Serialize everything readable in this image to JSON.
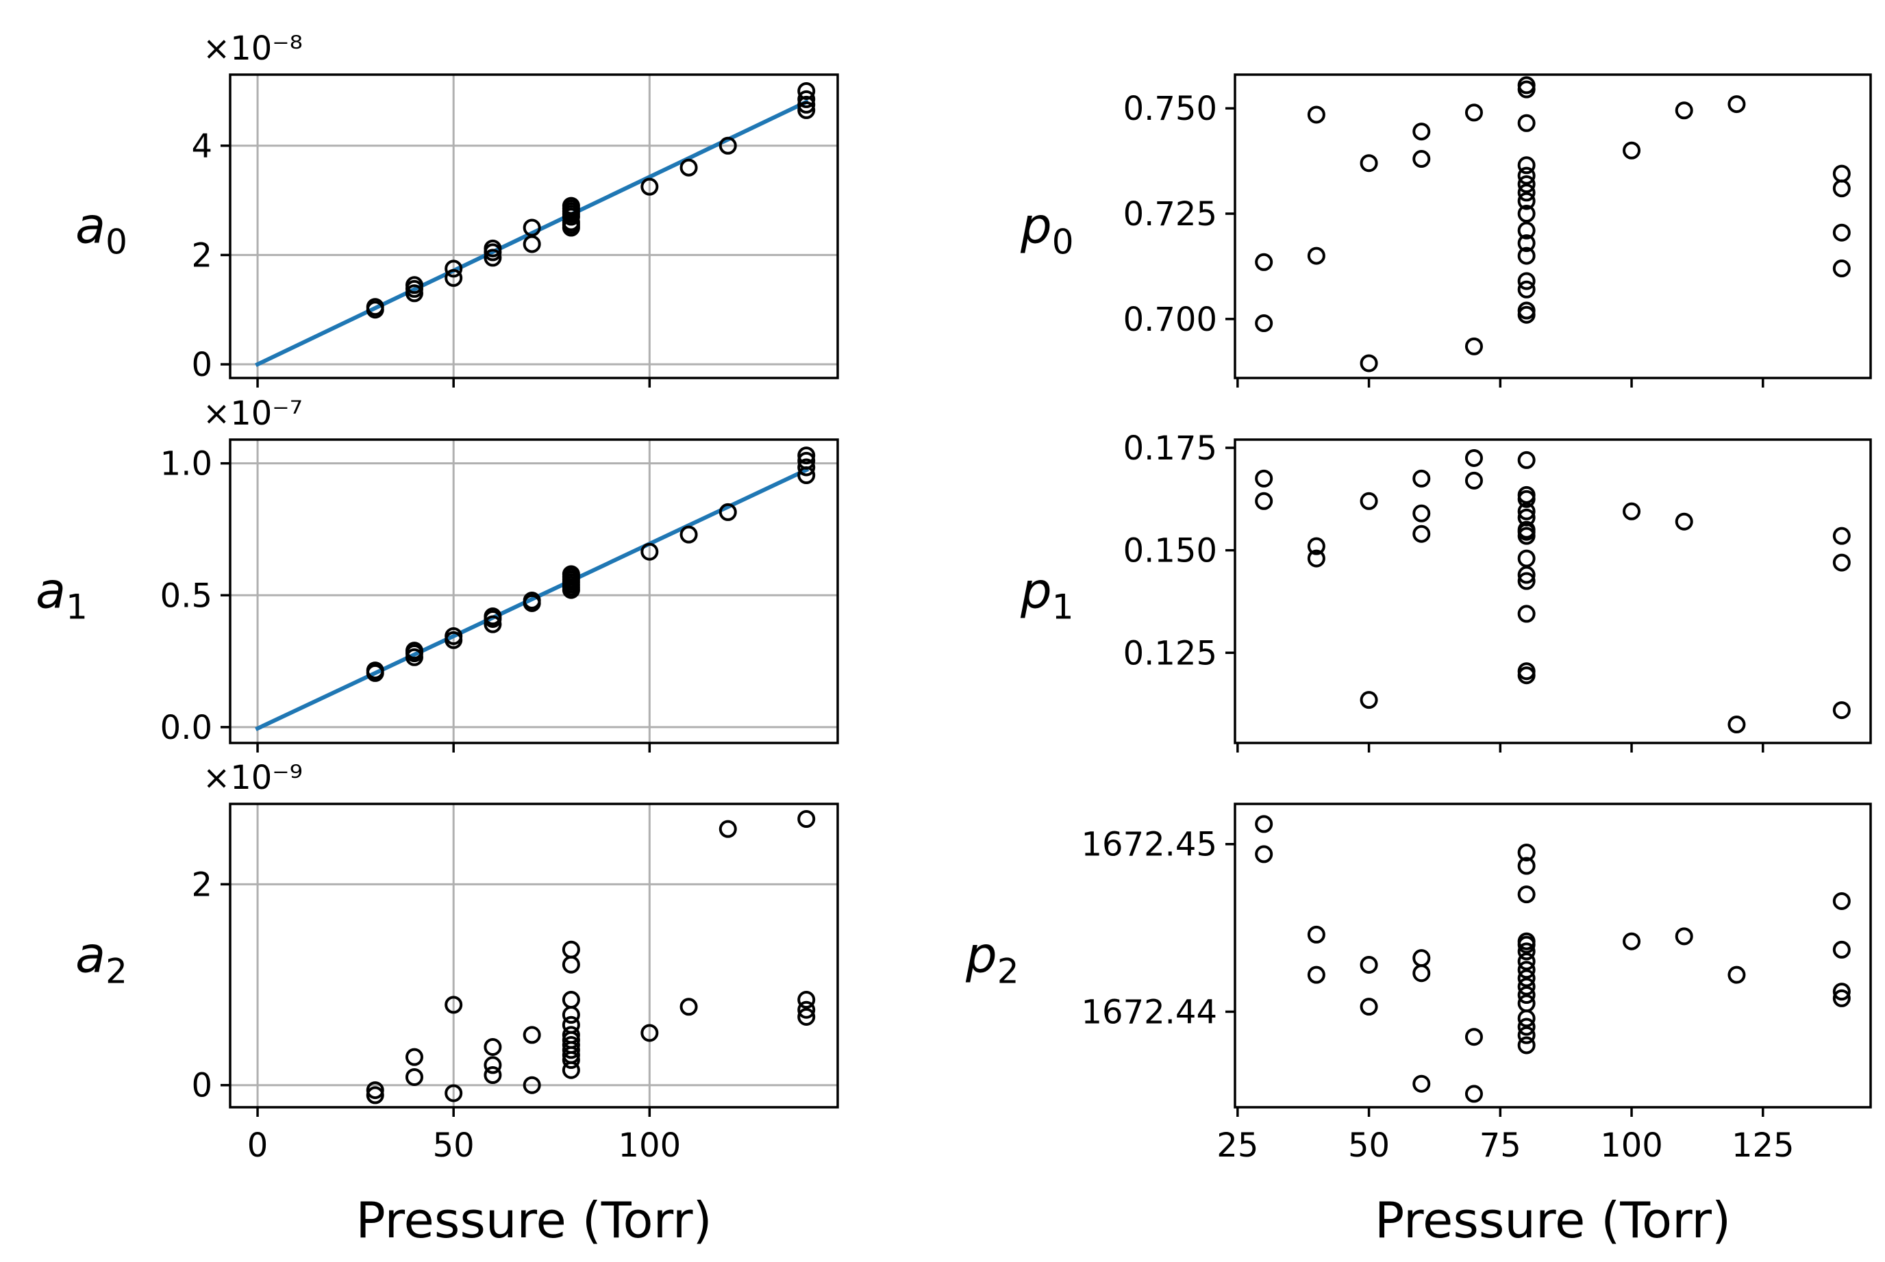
{
  "chart_data": [
    {
      "id": "a0",
      "type": "scatter",
      "ylabel": "a",
      "ylabel_sub": "0",
      "offset_text": "×10⁻⁸",
      "xlabel": "",
      "grid": true,
      "xlim": [
        -7,
        148
      ],
      "ylim": [
        -0.25,
        5.3
      ],
      "xticks": [
        0,
        50,
        100
      ],
      "xtick_labels": [
        "",
        "",
        ""
      ],
      "yticks": [
        0,
        2,
        4
      ],
      "ytick_labels": [
        "0",
        "2",
        "4"
      ],
      "fit_line": {
        "x": [
          0,
          140
        ],
        "y": [
          0,
          4.8
        ],
        "color": "#1f77b4"
      },
      "x": [
        30,
        30,
        40,
        40,
        40,
        50,
        50,
        60,
        60,
        60,
        70,
        70,
        80,
        80,
        80,
        80,
        80,
        80,
        80,
        80,
        100,
        110,
        120,
        140,
        140,
        140,
        140
      ],
      "y": [
        1.0,
        1.05,
        1.3,
        1.38,
        1.45,
        1.58,
        1.75,
        1.95,
        2.05,
        2.12,
        2.2,
        2.5,
        2.55,
        2.6,
        2.7,
        2.75,
        2.8,
        2.85,
        2.9,
        2.5,
        3.25,
        3.6,
        4.0,
        4.65,
        4.75,
        4.85,
        5.0
      ]
    },
    {
      "id": "a1",
      "type": "scatter",
      "ylabel": "a",
      "ylabel_sub": "1",
      "offset_text": "×10⁻⁷",
      "xlabel": "",
      "grid": true,
      "xlim": [
        -7,
        148
      ],
      "ylim": [
        -0.06,
        1.09
      ],
      "xticks": [
        0,
        50,
        100
      ],
      "xtick_labels": [
        "",
        "",
        ""
      ],
      "yticks": [
        0.0,
        0.5,
        1.0
      ],
      "ytick_labels": [
        "0.0",
        "0.5",
        "1.0"
      ],
      "fit_line": {
        "x": [
          0,
          140
        ],
        "y": [
          -0.005,
          0.975
        ],
        "color": "#1f77b4"
      },
      "x": [
        30,
        30,
        40,
        40,
        40,
        50,
        50,
        60,
        60,
        60,
        70,
        70,
        80,
        80,
        80,
        80,
        80,
        80,
        80,
        100,
        110,
        120,
        140,
        140,
        140,
        140
      ],
      "y": [
        0.205,
        0.215,
        0.265,
        0.28,
        0.29,
        0.33,
        0.345,
        0.39,
        0.41,
        0.42,
        0.47,
        0.48,
        0.52,
        0.53,
        0.54,
        0.55,
        0.56,
        0.57,
        0.58,
        0.665,
        0.73,
        0.815,
        0.955,
        0.985,
        1.01,
        1.03
      ]
    },
    {
      "id": "a2",
      "type": "scatter",
      "ylabel": "a",
      "ylabel_sub": "2",
      "offset_text": "×10⁻⁹",
      "xlabel": "Pressure (Torr)",
      "grid": true,
      "xlim": [
        -7,
        148
      ],
      "ylim": [
        -0.22,
        2.8
      ],
      "xticks": [
        0,
        50,
        100
      ],
      "xtick_labels": [
        "0",
        "50",
        "100"
      ],
      "yticks": [
        0,
        2
      ],
      "ytick_labels": [
        "0",
        "2"
      ],
      "fit_line": null,
      "x": [
        30,
        30,
        40,
        40,
        50,
        50,
        60,
        60,
        60,
        70,
        70,
        80,
        80,
        80,
        80,
        80,
        80,
        80,
        80,
        80,
        80,
        80,
        80,
        100,
        110,
        120,
        140,
        140,
        140,
        140
      ],
      "y": [
        -0.05,
        -0.1,
        0.08,
        0.28,
        0.8,
        -0.08,
        0.1,
        0.2,
        0.38,
        0.5,
        0.0,
        0.15,
        0.25,
        0.3,
        0.35,
        0.4,
        0.45,
        0.5,
        0.6,
        0.7,
        0.85,
        1.2,
        1.35,
        0.52,
        0.78,
        2.55,
        2.65,
        0.85,
        0.75,
        0.68
      ]
    },
    {
      "id": "p0",
      "type": "scatter",
      "ylabel": "p",
      "ylabel_sub": "0",
      "offset_text": "",
      "xlabel": "",
      "grid": false,
      "xlim": [
        24.5,
        145.5
      ],
      "ylim": [
        0.686,
        0.758
      ],
      "xticks": [
        25,
        50,
        75,
        100,
        125
      ],
      "xtick_labels": [
        "",
        "",
        "",
        "",
        ""
      ],
      "yticks": [
        0.7,
        0.725,
        0.75
      ],
      "ytick_labels": [
        "0.700",
        "0.725",
        "0.750"
      ],
      "fit_line": null,
      "x": [
        30,
        30,
        40,
        40,
        50,
        50,
        60,
        60,
        70,
        70,
        80,
        80,
        80,
        80,
        80,
        80,
        80,
        80,
        80,
        80,
        80,
        80,
        80,
        80,
        80,
        80,
        100,
        110,
        120,
        140,
        140,
        140,
        140
      ],
      "y": [
        0.699,
        0.7135,
        0.715,
        0.7485,
        0.6895,
        0.737,
        0.738,
        0.7445,
        0.6935,
        0.749,
        0.701,
        0.702,
        0.707,
        0.709,
        0.715,
        0.718,
        0.721,
        0.725,
        0.728,
        0.73,
        0.732,
        0.734,
        0.7365,
        0.7465,
        0.7545,
        0.7555,
        0.74,
        0.7495,
        0.751,
        0.712,
        0.7205,
        0.731,
        0.7345
      ]
    },
    {
      "id": "p1",
      "type": "scatter",
      "ylabel": "p",
      "ylabel_sub": "1",
      "offset_text": "",
      "xlabel": "",
      "grid": false,
      "xlim": [
        24.5,
        145.5
      ],
      "ylim": [
        0.103,
        0.177
      ],
      "xticks": [
        25,
        50,
        75,
        100,
        125
      ],
      "xtick_labels": [
        "",
        "",
        "",
        "",
        ""
      ],
      "yticks": [
        0.125,
        0.15,
        0.175
      ],
      "ytick_labels": [
        "0.125",
        "0.150",
        "0.175"
      ],
      "fit_line": null,
      "x": [
        30,
        30,
        40,
        40,
        50,
        50,
        60,
        60,
        60,
        70,
        70,
        80,
        80,
        80,
        80,
        80,
        80,
        80,
        80,
        80,
        80,
        80,
        80,
        80,
        80,
        100,
        110,
        120,
        140,
        140,
        140
      ],
      "y": [
        0.162,
        0.1675,
        0.148,
        0.151,
        0.1135,
        0.162,
        0.154,
        0.159,
        0.1675,
        0.167,
        0.1725,
        0.1195,
        0.1205,
        0.1345,
        0.1425,
        0.144,
        0.148,
        0.1535,
        0.155,
        0.158,
        0.1595,
        0.1625,
        0.1635,
        0.172,
        0.1545,
        0.1595,
        0.157,
        0.1075,
        0.111,
        0.147,
        0.1535
      ]
    },
    {
      "id": "p2",
      "type": "scatter",
      "ylabel": "p",
      "ylabel_sub": "2",
      "offset_text": "",
      "xlabel": "Pressure (Torr)",
      "grid": false,
      "xlim": [
        24.5,
        145.5
      ],
      "ylim": [
        1672.4343,
        1672.4524
      ],
      "xticks": [
        25,
        50,
        75,
        100,
        125
      ],
      "xtick_labels": [
        "25",
        "50",
        "75",
        "100",
        "125"
      ],
      "yticks": [
        1672.44,
        1672.45
      ],
      "ytick_labels": [
        "1672.44",
        "1672.45"
      ],
      "fit_line": null,
      "x": [
        30,
        30,
        40,
        40,
        50,
        50,
        60,
        60,
        60,
        70,
        70,
        80,
        80,
        80,
        80,
        80,
        80,
        80,
        80,
        80,
        80,
        80,
        80,
        80,
        80,
        80,
        80,
        100,
        110,
        120,
        140,
        140,
        140,
        140
      ],
      "y": [
        1672.4512,
        1672.4494,
        1672.4446,
        1672.4422,
        1672.4428,
        1672.4403,
        1672.4357,
        1672.4423,
        1672.4432,
        1672.4351,
        1672.4385,
        1672.438,
        1672.4386,
        1672.4391,
        1672.4396,
        1672.4405,
        1672.441,
        1672.4415,
        1672.442,
        1672.4425,
        1672.443,
        1672.4436,
        1672.444,
        1672.447,
        1672.4487,
        1672.4495,
        1672.4442,
        1672.4442,
        1672.4445,
        1672.4422,
        1672.4408,
        1672.4412,
        1672.4437,
        1672.4466
      ]
    }
  ]
}
